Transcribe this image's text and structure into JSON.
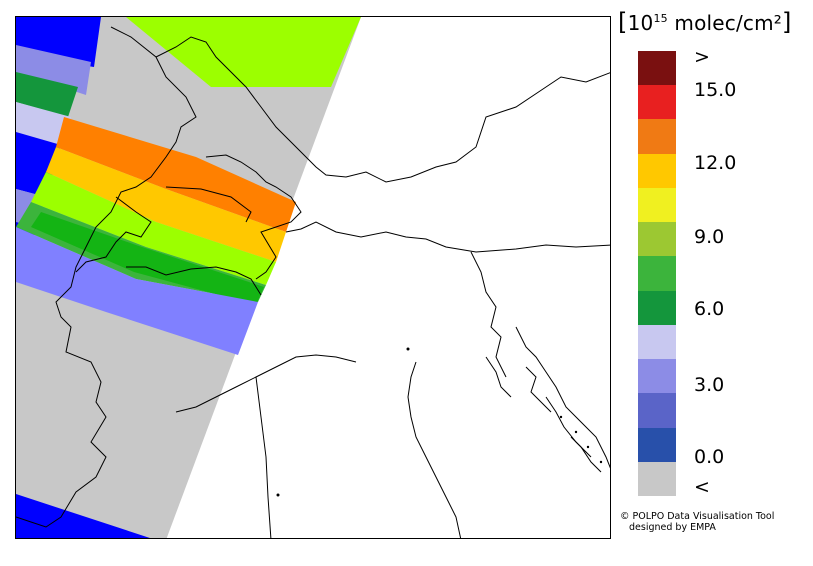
{
  "legend": {
    "unit_prefix": "[",
    "unit_power_base": "10",
    "unit_exponent": "15",
    "unit_suffix": "molec/cm²",
    "unit_close": "]",
    "labels": [
      ">",
      "15.0",
      "12.0",
      "9.0",
      "6.0",
      "3.0",
      "0.0",
      "<"
    ],
    "swatch_colors": [
      "#7a1010",
      "#e82020",
      "#f07a14",
      "#ffc800",
      "#f0f020",
      "#9cc832",
      "#3cb43c",
      "#14963c",
      "#c8c8f0",
      "#8c8ce6",
      "#5a64c8",
      "#2850aa",
      "#c8c8c8"
    ],
    "swatch_names": [
      "above-max",
      "band-15",
      "band-13.5",
      "band-12",
      "band-10.5",
      "band-9",
      "band-7.5",
      "band-6",
      "band-4.5",
      "band-3",
      "band-1.5",
      "band-0",
      "below-min"
    ]
  },
  "credit": {
    "line1": "© POLPO Data Visualisation Tool",
    "line2": "designed by EMPA"
  },
  "map": {
    "region": "Alps / Northern Italy",
    "background_color": "#ffffff",
    "no_data_color": "#c8c8c8",
    "coastline_color": "#000000"
  }
}
